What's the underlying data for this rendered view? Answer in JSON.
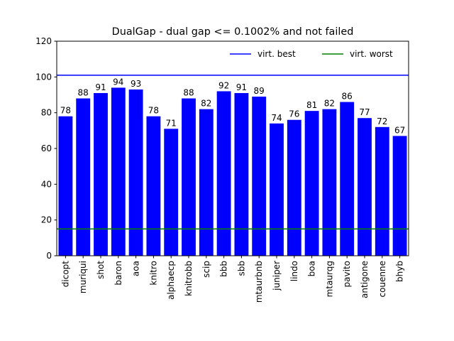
{
  "chart_data": {
    "type": "bar",
    "title": "DualGap - dual gap <= 0.1002% and not failed",
    "xlabel": "",
    "ylabel": "",
    "ylim": [
      0,
      120
    ],
    "yticks": [
      0,
      20,
      40,
      60,
      80,
      100,
      120
    ],
    "grid": false,
    "legend_position": "top-right",
    "categories": [
      "dicopt",
      "muriqui",
      "shot",
      "baron",
      "aoa",
      "knitro",
      "alphaecp",
      "knitrobb",
      "scip",
      "bbb",
      "sbb",
      "mtaurbnb",
      "juniper",
      "lindo",
      "boa",
      "mtaurqg",
      "pavito",
      "antigone",
      "couenne",
      "bhyb"
    ],
    "values": [
      78,
      88,
      91,
      94,
      93,
      78,
      71,
      88,
      82,
      92,
      91,
      89,
      74,
      76,
      81,
      82,
      86,
      77,
      72,
      67
    ],
    "bar_color": "#0000ff",
    "reference_lines": [
      {
        "name": "virt. best",
        "value": 101,
        "color": "#0000ff"
      },
      {
        "name": "virt. worst",
        "value": 15,
        "color": "#008000"
      }
    ]
  }
}
